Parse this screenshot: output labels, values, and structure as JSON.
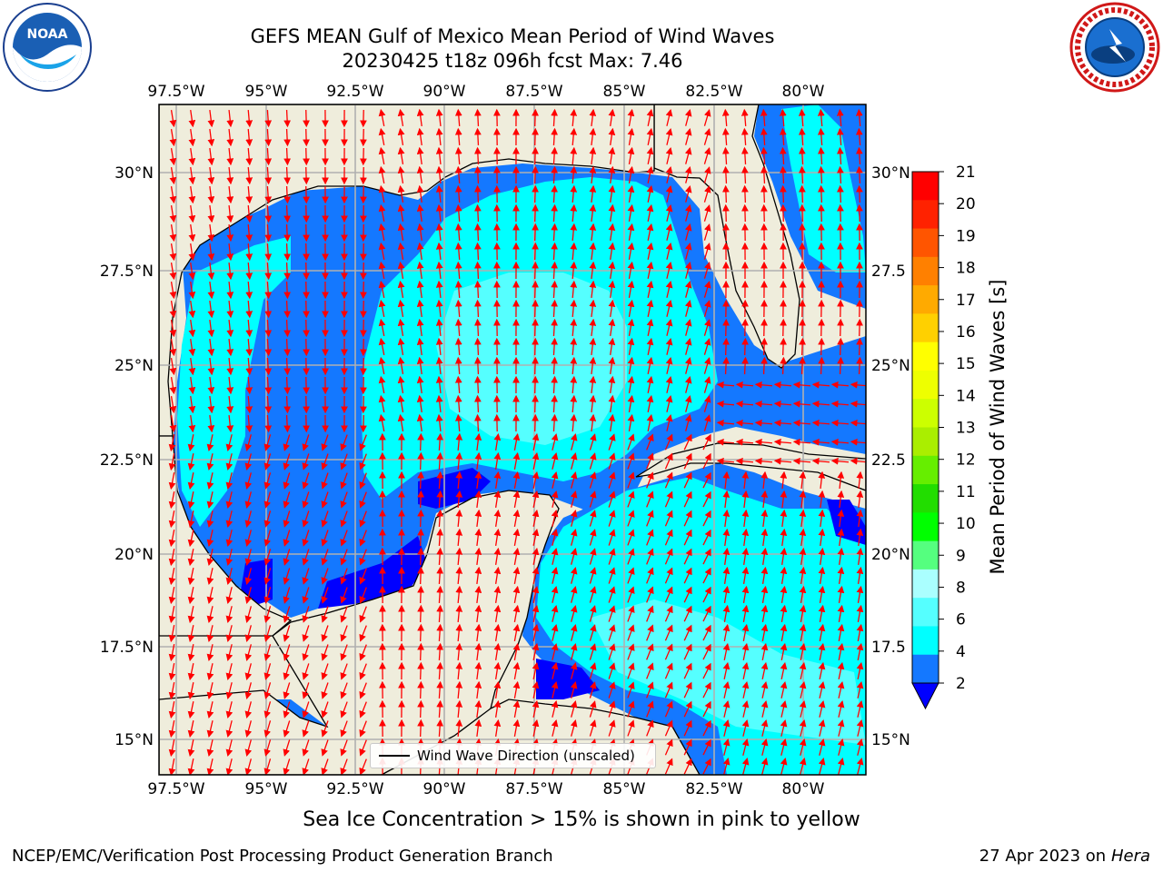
{
  "header": {
    "title_line1": "GEFS MEAN Gulf of Mexico Mean Period of Wind Waves",
    "title_line2": "20230425 t18z 096h fcst   Max: 7.46"
  },
  "logos": {
    "left": "noaa-logo",
    "left_text": "NOAA",
    "right": "nws-logo",
    "right_text": "NATIONAL WEATHER SERVICE"
  },
  "map": {
    "lon_labels": [
      "97.5°W",
      "95°W",
      "92.5°W",
      "90°W",
      "87.5°W",
      "85°W",
      "82.5°W",
      "80°W"
    ],
    "lat_labels_left": [
      "30°N",
      "27.5°N",
      "25°N",
      "22.5°N",
      "20°N",
      "17.5°N",
      "15°N"
    ],
    "lat_labels_right": [
      "30°N",
      "27.5",
      "25°N",
      "22.5",
      "20°N",
      "17.5",
      "15°N"
    ],
    "legend_label": "Wind Wave Direction (unscaled)",
    "colors": {
      "land": "#efeddc",
      "period_2_4": "#1478ff",
      "period_4_6": "#00ffff",
      "period_6_8": "#55ffff",
      "period_lt2": "#0000ff",
      "arrow": "#ff0000",
      "grid": "#b0b0b0"
    }
  },
  "colorbar": {
    "label": "Mean Period of Wind Waves [s]",
    "ticks": [
      "2",
      "4",
      "6",
      "8",
      "9",
      "10",
      "11",
      "12",
      "13",
      "14",
      "15",
      "16",
      "17",
      "18",
      "19",
      "20",
      "21"
    ],
    "colors": [
      "#1478ff",
      "#00ffff",
      "#55ffff",
      "#aaffff",
      "#55ff7f",
      "#00ff00",
      "#22dd00",
      "#66ee00",
      "#aaee00",
      "#ccff00",
      "#eeff00",
      "#ffff00",
      "#ffd000",
      "#ffaa00",
      "#ff8000",
      "#ff5500",
      "#ff2200",
      "#ff0000"
    ],
    "under_color": "#0000ff"
  },
  "subtitle": "Sea Ice Concentration > 15% is shown in pink to yellow",
  "footer": {
    "left": "NCEP/EMC/Verification Post Processing Product Generation Branch",
    "right_date": "27 Apr 2023 on",
    "right_host": "Hera"
  }
}
